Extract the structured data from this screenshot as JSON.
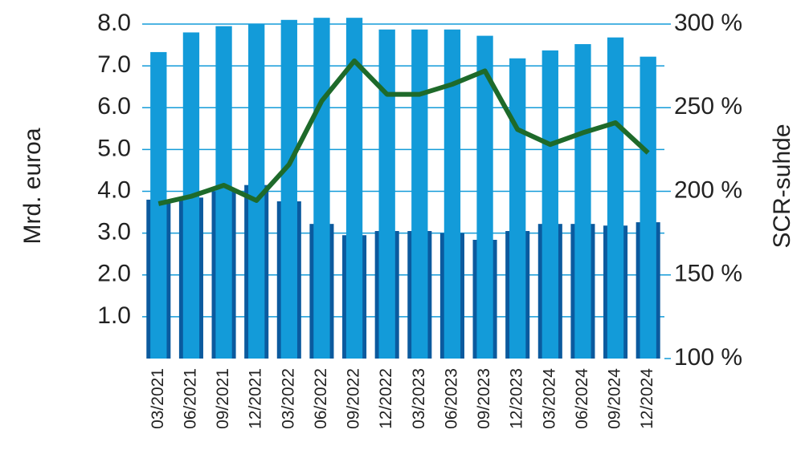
{
  "chart_data": {
    "type": "bar",
    "y_label": "Mrd. euroa",
    "y2_label": "SCR-suhde",
    "categories": [
      "03/2021",
      "06/2021",
      "09/2021",
      "12/2021",
      "03/2022",
      "06/2022",
      "09/2022",
      "12/2022",
      "03/2023",
      "06/2023",
      "09/2023",
      "12/2023",
      "03/2024",
      "06/2024",
      "09/2024",
      "12/2024"
    ],
    "series": [
      {
        "type": "bar",
        "color": "#0b5a9e",
        "values": [
          3.8,
          3.85,
          4.0,
          4.15,
          3.76,
          3.22,
          2.95,
          3.05,
          3.05,
          3.0,
          2.84,
          3.05,
          3.22,
          3.22,
          3.18,
          3.26
        ]
      },
      {
        "type": "bar",
        "color": "#139bd9",
        "values": [
          7.33,
          7.8,
          7.95,
          8.0,
          8.1,
          8.15,
          8.15,
          7.87,
          7.87,
          7.87,
          7.72,
          7.18,
          7.37,
          7.52,
          7.68,
          7.22
        ]
      },
      {
        "type": "line",
        "axis": "y2",
        "color": "#1e6a2a",
        "values": [
          192.6,
          197,
          203.6,
          194.5,
          216,
          254,
          278,
          258,
          258,
          264,
          272,
          237,
          228,
          235,
          241,
          223
        ]
      }
    ],
    "ylim": [
      0,
      8
    ],
    "yticks": [
      {
        "value": 1,
        "label": "1.0"
      },
      {
        "value": 2,
        "label": "2.0"
      },
      {
        "value": 3,
        "label": "3.0"
      },
      {
        "value": 4,
        "label": "4.0"
      },
      {
        "value": 5,
        "label": "5.0"
      },
      {
        "value": 6,
        "label": "6.0"
      },
      {
        "value": 7,
        "label": "7.0"
      },
      {
        "value": 8,
        "label": "8.0"
      }
    ],
    "y2lim": [
      100,
      300
    ],
    "y2ticks": [
      {
        "value": 100,
        "label": "100 %"
      },
      {
        "value": 150,
        "label": "150 %"
      },
      {
        "value": 200,
        "label": "200 %"
      },
      {
        "value": 250,
        "label": "250 %"
      },
      {
        "value": 300,
        "label": "300 %"
      }
    ],
    "grid": true
  }
}
